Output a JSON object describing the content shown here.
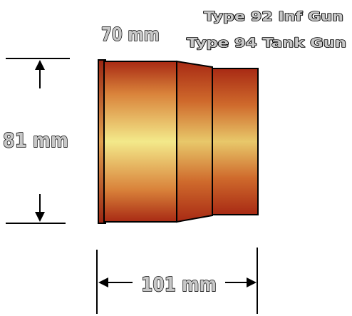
{
  "labels": {
    "diameter": "70 mm",
    "title_line_1": "Type 92 Inf Gun",
    "title_line_2": "Type 94 Tank Gun",
    "rim_diameter": "81 mm",
    "length": "101 mm"
  },
  "colors": {
    "outline": "#000000",
    "label_fill": "#c8c8c8",
    "body_highlight": "#f3e98a",
    "body_mid": "#e7b45a",
    "body_edge": "#a82a14"
  },
  "icons": [
    "arrow-up-icon",
    "arrow-down-icon",
    "arrow-left-icon",
    "arrow-right-icon"
  ]
}
